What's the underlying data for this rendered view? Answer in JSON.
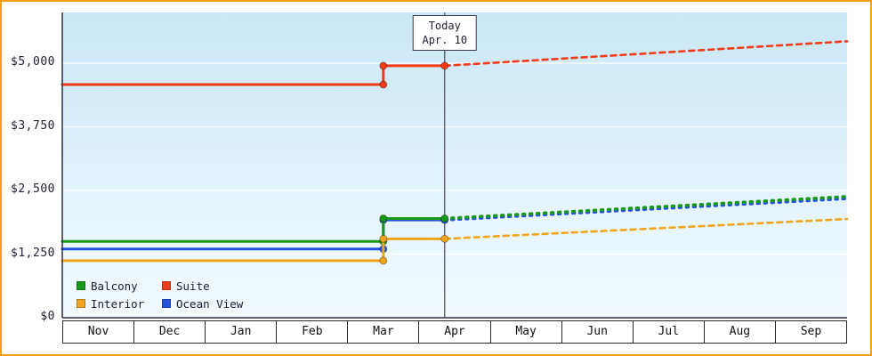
{
  "frame": {
    "border_color": "#f59d17"
  },
  "chart_data": {
    "type": "line",
    "title": "",
    "description": "Cabin price history and forecast by category; solid lines are past prices, dotted lines are forecast after today",
    "x_axis": {
      "labels": [
        "Nov",
        "Dec",
        "Jan",
        "Feb",
        "Mar",
        "Apr",
        "May",
        "Jun",
        "Jul",
        "Aug",
        "Sep"
      ]
    },
    "y_axis": {
      "ticks": [
        {
          "label": "$5,000",
          "value": 5000
        },
        {
          "label": "$3,750",
          "value": 3750
        },
        {
          "label": "$2,500",
          "value": 2500
        },
        {
          "label": "$1,250",
          "value": 1250
        },
        {
          "label": "$0",
          "value": 0
        }
      ],
      "grid_values": [
        1250,
        2500,
        3750,
        5000
      ],
      "min": 0,
      "max": 5000
    },
    "today": {
      "line1": "Today",
      "line2": "Apr. 10",
      "x_units": 5.36
    },
    "series": [
      {
        "name": "Ocean View",
        "color": "#2553de",
        "dash_style": "dot",
        "solid": [
          [
            0,
            1350
          ],
          [
            4.5,
            1350
          ],
          [
            4.5,
            1920
          ],
          [
            5.36,
            1920
          ]
        ],
        "dashed": [
          [
            5.36,
            1920
          ],
          [
            11,
            2340
          ]
        ],
        "markers": [
          [
            4.5,
            1350
          ],
          [
            4.5,
            1920
          ],
          [
            5.36,
            1920
          ]
        ]
      },
      {
        "name": "Balcony",
        "color": "#189a18",
        "dash_style": "dot",
        "solid": [
          [
            0,
            1500
          ],
          [
            4.5,
            1500
          ],
          [
            4.5,
            1950
          ],
          [
            5.36,
            1950
          ]
        ],
        "dashed": [
          [
            5.36,
            1950
          ],
          [
            11,
            2380
          ]
        ],
        "markers": [
          [
            4.5,
            1500
          ],
          [
            4.5,
            1950
          ],
          [
            5.36,
            1950
          ]
        ]
      },
      {
        "name": "Interior",
        "color": "#f0a51c",
        "dash_style": "dash",
        "solid": [
          [
            0,
            1120
          ],
          [
            4.5,
            1120
          ],
          [
            4.5,
            1550
          ],
          [
            5.36,
            1550
          ]
        ],
        "dashed": [
          [
            5.36,
            1550
          ],
          [
            11,
            1940
          ]
        ],
        "markers": [
          [
            4.5,
            1120
          ],
          [
            4.5,
            1550
          ],
          [
            5.36,
            1550
          ]
        ]
      },
      {
        "name": "Suite",
        "color": "#f23b19",
        "dash_style": "dash",
        "solid": [
          [
            0,
            4580
          ],
          [
            4.5,
            4580
          ],
          [
            4.5,
            4950
          ],
          [
            5.36,
            4950
          ]
        ],
        "dashed": [
          [
            5.36,
            4950
          ],
          [
            11,
            5430
          ]
        ],
        "markers": [
          [
            4.5,
            4580
          ],
          [
            4.5,
            4950
          ],
          [
            5.36,
            4950
          ]
        ]
      }
    ],
    "legend": [
      {
        "label": "Balcony",
        "color": "#189a18"
      },
      {
        "label": "Suite",
        "color": "#f23b19"
      },
      {
        "label": "Interior",
        "color": "#f0a51c"
      },
      {
        "label": "Ocean View",
        "color": "#2553de"
      }
    ]
  }
}
